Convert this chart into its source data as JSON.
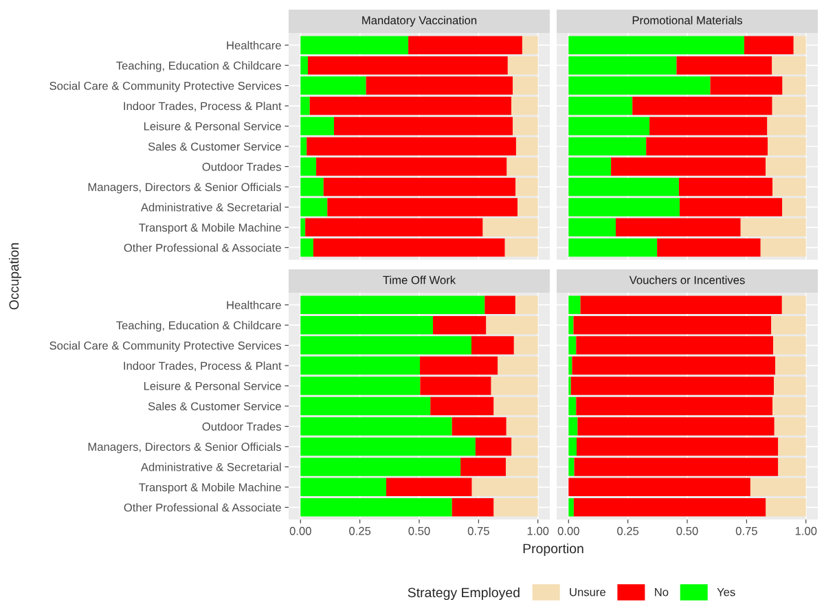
{
  "chart_data": [
    {
      "type": "bar",
      "title": "Mandatory Vaccination",
      "orientation": "horizontal",
      "stacked": true,
      "xlabel": "Proportion",
      "ylabel": "Occupation",
      "legend": "bottom",
      "legend_title": "Strategy Employed",
      "grid": true,
      "tick_labels": "y",
      "categories": [
        "Healthcare",
        "Teaching, Education & Childcare",
        "Social Care & Community Protective Services",
        "Indoor Trades, Process & Plant",
        "Leisure & Personal Service",
        "Sales & Customer Service",
        "Outdoor Trades",
        "Managers, Directors & Senior Officials",
        "Administrative & Secretarial",
        "Transport & Mobile Machine",
        "Other Professional & Associate"
      ],
      "xlim": [
        -0.05,
        1.05
      ],
      "xticks": [
        0,
        0.25,
        0.5,
        0.75,
        1
      ],
      "series": [
        {
          "name": "Yes",
          "color": "#00ff00",
          "values": [
            0.454,
            0.031,
            0.276,
            0.039,
            0.141,
            0.026,
            0.066,
            0.097,
            0.113,
            0.02,
            0.054
          ]
        },
        {
          "name": "No",
          "color": "#ff0000",
          "values": [
            0.48,
            0.842,
            0.618,
            0.849,
            0.753,
            0.882,
            0.803,
            0.809,
            0.801,
            0.748,
            0.807
          ]
        },
        {
          "name": "Unsure",
          "color": "#f5deb3",
          "values": [
            0.066,
            0.127,
            0.106,
            0.112,
            0.106,
            0.092,
            0.131,
            0.094,
            0.086,
            0.232,
            0.139
          ]
        }
      ]
    },
    {
      "type": "bar",
      "title": "Promotional Materials",
      "orientation": "horizontal",
      "stacked": true,
      "grid": true,
      "tick_labels": false,
      "categories": [
        null,
        null,
        null,
        null,
        null,
        null,
        null,
        null,
        null,
        null,
        null
      ],
      "xlim": [
        -0.05,
        1.05
      ],
      "xticks": [
        0,
        0.25,
        0.5,
        0.75,
        1
      ],
      "series": [
        {
          "color": "#00ff00",
          "values": [
            0.74,
            0.455,
            0.597,
            0.269,
            0.341,
            0.327,
            0.179,
            0.465,
            0.468,
            0.199,
            0.373
          ]
        },
        {
          "color": "#ff0000",
          "values": [
            0.208,
            0.402,
            0.304,
            0.589,
            0.496,
            0.512,
            0.651,
            0.394,
            0.432,
            0.526,
            0.436
          ]
        },
        {
          "color": "#f5deb3",
          "values": [
            0.052,
            0.143,
            0.099,
            0.142,
            0.163,
            0.161,
            0.17,
            0.141,
            0.1,
            0.275,
            0.191
          ]
        }
      ]
    },
    {
      "type": "bar",
      "title": "Time Off Work",
      "orientation": "horizontal",
      "stacked": true,
      "grid": true,
      "categories": [
        "Healthcare",
        "Teaching, Education & Childcare",
        "Social Care & Community Protective Services",
        "Indoor Trades, Process & Plant",
        "Leisure & Personal Service",
        "Sales & Customer Service",
        "Outdoor Trades",
        "Managers, Directors & Senior Officials",
        "Administrative & Secretarial",
        "Transport & Mobile Machine",
        "Other Professional & Associate"
      ],
      "xlim": [
        -0.05,
        1.05
      ],
      "xticks": [
        {
          "value": 0,
          "label": "0.00"
        },
        {
          "value": 0.25,
          "label": "0.25"
        },
        {
          "value": 0.5,
          "label": "0.50"
        },
        {
          "value": 0.75,
          "label": "0.75"
        },
        {
          "value": 1,
          "label": "1.00"
        }
      ],
      "series": [
        {
          "color": "#00ff00",
          "values": [
            0.776,
            0.558,
            0.72,
            0.503,
            0.504,
            0.547,
            0.638,
            0.737,
            0.674,
            0.361,
            0.638
          ]
        },
        {
          "color": "#ff0000",
          "values": [
            0.129,
            0.224,
            0.179,
            0.328,
            0.299,
            0.267,
            0.229,
            0.152,
            0.191,
            0.361,
            0.176
          ]
        },
        {
          "color": "#f5deb3",
          "values": [
            0.095,
            0.218,
            0.101,
            0.169,
            0.197,
            0.186,
            0.133,
            0.111,
            0.135,
            0.278,
            0.186
          ]
        }
      ]
    },
    {
      "type": "bar",
      "title": "Vouchers or Incentives",
      "orientation": "horizontal",
      "stacked": true,
      "grid": true,
      "tick_labels": "x",
      "categories": [
        null,
        null,
        null,
        null,
        null,
        null,
        null,
        null,
        null,
        null,
        null
      ],
      "xlim": [
        -0.05,
        1.05
      ],
      "xticks": [
        {
          "value": 0,
          "label": "0.00"
        },
        {
          "value": 0.25,
          "label": "0.25"
        },
        {
          "value": 0.5,
          "label": "0.50"
        },
        {
          "value": 0.75,
          "label": "0.75"
        },
        {
          "value": 1,
          "label": "1.00"
        }
      ],
      "series": [
        {
          "color": "#00ff00",
          "values": [
            0.05,
            0.021,
            0.032,
            0.015,
            0.01,
            0.032,
            0.038,
            0.034,
            0.024,
            0.0,
            0.022
          ]
        },
        {
          "color": "#ff0000",
          "values": [
            0.849,
            0.833,
            0.83,
            0.856,
            0.855,
            0.827,
            0.829,
            0.849,
            0.859,
            0.766,
            0.809
          ]
        },
        {
          "color": "#f5deb3",
          "values": [
            0.101,
            0.146,
            0.138,
            0.129,
            0.135,
            0.141,
            0.133,
            0.117,
            0.117,
            0.234,
            0.169
          ]
        }
      ]
    }
  ]
}
